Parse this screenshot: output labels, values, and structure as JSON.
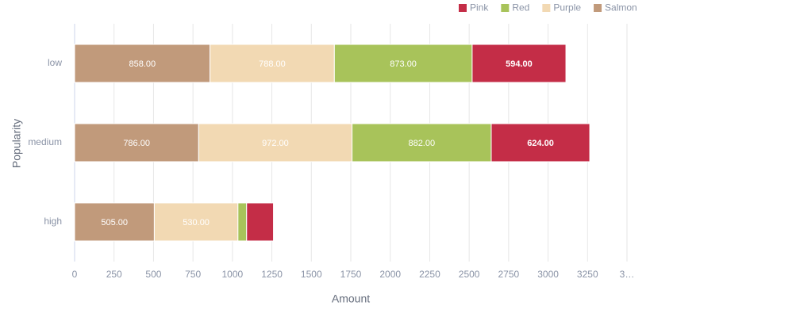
{
  "chart_data": {
    "type": "hbar-stacked",
    "x_label": "Amount",
    "y_label": "Popularity",
    "categories": [
      "low",
      "medium",
      "high"
    ],
    "series": [
      {
        "name": "Salmon",
        "color": "#c19a7b",
        "values": [
          858,
          786,
          505
        ],
        "value_labels": [
          "858.00",
          "786.00",
          "505.00"
        ]
      },
      {
        "name": "Purple",
        "color": "#f2d9b3",
        "values": [
          788,
          972,
          530
        ],
        "value_labels": [
          "788.00",
          "972.00",
          "530.00"
        ]
      },
      {
        "name": "Red",
        "color": "#a8c35a",
        "values": [
          873,
          882,
          55
        ],
        "value_labels": [
          "873.00",
          "882.00",
          null
        ]
      },
      {
        "name": "Pink",
        "color": "#c42d47",
        "values": [
          594,
          624,
          170
        ],
        "value_labels": [
          "594.00",
          "624.00",
          null
        ]
      }
    ],
    "legend_order": [
      "Pink",
      "Red",
      "Purple",
      "Salmon"
    ],
    "xlim": [
      0,
      3500
    ],
    "xticks": [
      0,
      250,
      500,
      750,
      1000,
      1250,
      1500,
      1750,
      2000,
      2250,
      2500,
      2750,
      3000,
      3250,
      {
        "value": 3500,
        "label": "3…"
      }
    ],
    "grid": true
  }
}
